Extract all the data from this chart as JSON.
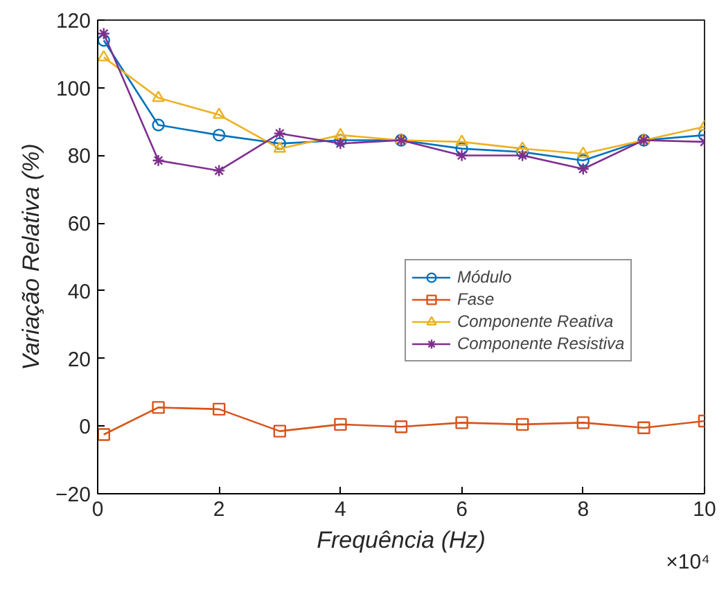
{
  "chart_data": {
    "type": "line",
    "xlabel": "Frequência (Hz)",
    "ylabel": "Variação Relativa (%)",
    "x": [
      0.1,
      1,
      2,
      3,
      4,
      5,
      6,
      7,
      8,
      9,
      10
    ],
    "series": [
      {
        "name": "Módulo",
        "color": "#0072bd",
        "marker": "circle",
        "values": [
          114,
          89,
          86,
          83.5,
          84.5,
          84.5,
          82,
          81,
          78.5,
          84.5,
          86
        ]
      },
      {
        "name": "Fase",
        "color": "#d95319",
        "marker": "square",
        "values": [
          -2.5,
          5.5,
          5,
          -1.5,
          0.5,
          -0.2,
          1,
          0.5,
          1,
          -0.5,
          1.5
        ]
      },
      {
        "name": "Componente Reativa",
        "color": "#edb120",
        "marker": "triangle",
        "values": [
          109,
          97,
          92,
          82,
          86,
          84.5,
          84,
          82,
          80.5,
          84.5,
          88.5
        ]
      },
      {
        "name": "Componente Resistiva",
        "color": "#7e2f8e",
        "marker": "cross",
        "values": [
          116,
          78.5,
          75.5,
          86.5,
          83.5,
          84.5,
          80,
          80,
          76,
          84.5,
          84
        ]
      }
    ],
    "xlim": [
      0,
      10
    ],
    "ylim": [
      -20,
      120
    ],
    "xticks": [
      0,
      2,
      4,
      6,
      8,
      10
    ],
    "yticks": [
      -20,
      0,
      20,
      40,
      60,
      80,
      100,
      120
    ],
    "annotations": [
      "×10⁴"
    ],
    "grid": false,
    "legend": "right",
    "line_style": "solid"
  }
}
